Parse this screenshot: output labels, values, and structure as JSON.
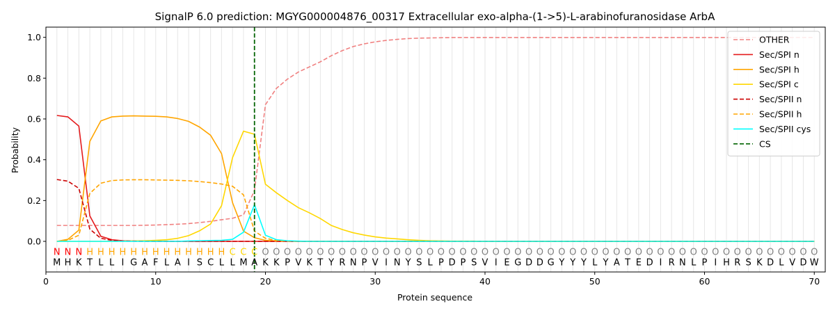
{
  "chart_data": {
    "type": "line",
    "title": "SignalP 6.0 prediction: MGYG000004876_00317 Extracellular exo-alpha-(1->5)-L-arabinofuranosidase ArbA",
    "xlabel": "Protein sequence",
    "ylabel": "Probability",
    "xlim": [
      0,
      71
    ],
    "ylim": [
      -0.15,
      1.05
    ],
    "xticks": [
      0,
      10,
      20,
      30,
      40,
      50,
      60,
      70
    ],
    "yticks": [
      0.0,
      0.2,
      0.4,
      0.6,
      0.8,
      1.0
    ],
    "ytick_labels": [
      "0.0",
      "0.2",
      "0.4",
      "0.6",
      "0.8",
      "1.0"
    ],
    "grid": "vertical lines at every residue",
    "legend_position": "top-right",
    "sequence": [
      "M",
      "H",
      "K",
      "T",
      "L",
      "L",
      "I",
      "G",
      "A",
      "F",
      "L",
      "A",
      "I",
      "S",
      "C",
      "L",
      "L",
      "M",
      "A",
      "K",
      "K",
      "P",
      "V",
      "K",
      "T",
      "Y",
      "R",
      "N",
      "P",
      "V",
      "I",
      "N",
      "Y",
      "S",
      "L",
      "P",
      "D",
      "P",
      "S",
      "V",
      "I",
      "E",
      "G",
      "D",
      "D",
      "G",
      "Y",
      "Y",
      "Y",
      "L",
      "Y",
      "A",
      "T",
      "E",
      "D",
      "I",
      "R",
      "N",
      "L",
      "P",
      "I",
      "H",
      "R",
      "S",
      "K",
      "D",
      "L",
      "V",
      "D",
      "W"
    ],
    "region_labels": [
      "N",
      "N",
      "N",
      "H",
      "H",
      "H",
      "H",
      "H",
      "H",
      "H",
      "H",
      "H",
      "H",
      "H",
      "H",
      "H",
      "C",
      "C",
      "C",
      "O",
      "O",
      "O",
      "O",
      "O",
      "O",
      "O",
      "O",
      "O",
      "O",
      "O",
      "O",
      "O",
      "O",
      "O",
      "O",
      "O",
      "O",
      "O",
      "O",
      "O",
      "O",
      "O",
      "O",
      "O",
      "O",
      "O",
      "O",
      "O",
      "O",
      "O",
      "O",
      "O",
      "O",
      "O",
      "O",
      "O",
      "O",
      "O",
      "O",
      "O",
      "O",
      "O",
      "O",
      "O",
      "O",
      "O",
      "O",
      "O",
      "O",
      "O"
    ],
    "region_colors": {
      "N": "#ff0000",
      "H": "#ffa500",
      "C": "#ffd700",
      "O": "#808080"
    },
    "cleavage_site": 19,
    "series": [
      {
        "name": "OTHER",
        "color": "#f08080",
        "dash": "dashed",
        "values": [
          0.078,
          0.078,
          0.078,
          0.078,
          0.078,
          0.078,
          0.078,
          0.078,
          0.079,
          0.08,
          0.082,
          0.084,
          0.087,
          0.092,
          0.098,
          0.106,
          0.113,
          0.13,
          0.25,
          0.67,
          0.75,
          0.795,
          0.83,
          0.855,
          0.88,
          0.91,
          0.935,
          0.955,
          0.968,
          0.978,
          0.985,
          0.99,
          0.994,
          0.996,
          0.997,
          0.998,
          0.999,
          0.999,
          0.999,
          0.999,
          0.999,
          0.999,
          0.999,
          0.999,
          0.999,
          0.999,
          0.999,
          0.999,
          0.999,
          0.999,
          0.999,
          0.999,
          0.999,
          0.999,
          0.999,
          0.999,
          0.999,
          0.999,
          0.999,
          0.999,
          0.999,
          0.999,
          0.999,
          0.999,
          0.999,
          0.999,
          0.999,
          0.999,
          0.999,
          0.999
        ]
      },
      {
        "name": "Sec/SPI n",
        "color": "#e41a1c",
        "dash": "solid",
        "values": [
          0.617,
          0.61,
          0.565,
          0.125,
          0.025,
          0.008,
          0.003,
          0.001,
          0.001,
          0,
          0,
          0,
          0,
          0,
          0,
          0,
          0,
          0,
          0,
          0,
          0,
          0,
          0,
          0,
          0,
          0,
          0,
          0,
          0,
          0,
          0,
          0,
          0,
          0,
          0,
          0,
          0,
          0,
          0,
          0,
          0,
          0,
          0,
          0,
          0,
          0,
          0,
          0,
          0,
          0,
          0,
          0,
          0,
          0,
          0,
          0,
          0,
          0,
          0,
          0,
          0,
          0,
          0,
          0,
          0,
          0,
          0,
          0,
          0,
          0
        ]
      },
      {
        "name": "Sec/SPI h",
        "color": "#ffa500",
        "dash": "solid",
        "values": [
          0.0,
          0.01,
          0.055,
          0.49,
          0.59,
          0.61,
          0.614,
          0.615,
          0.614,
          0.613,
          0.61,
          0.602,
          0.588,
          0.56,
          0.52,
          0.43,
          0.19,
          0.05,
          0.018,
          0.005,
          0.002,
          0.001,
          0,
          0,
          0,
          0,
          0,
          0,
          0,
          0,
          0,
          0,
          0,
          0,
          0,
          0,
          0,
          0,
          0,
          0,
          0,
          0,
          0,
          0,
          0,
          0,
          0,
          0,
          0,
          0,
          0,
          0,
          0,
          0,
          0,
          0,
          0,
          0,
          0,
          0,
          0,
          0,
          0,
          0,
          0,
          0,
          0,
          0,
          0,
          0
        ]
      },
      {
        "name": "Sec/SPI c",
        "color": "#ffd700",
        "dash": "solid",
        "values": [
          0,
          0,
          0,
          0,
          0,
          0,
          0.001,
          0.002,
          0.003,
          0.005,
          0.008,
          0.015,
          0.028,
          0.052,
          0.085,
          0.175,
          0.41,
          0.54,
          0.525,
          0.28,
          0.238,
          0.2,
          0.165,
          0.14,
          0.112,
          0.078,
          0.058,
          0.042,
          0.031,
          0.022,
          0.016,
          0.012,
          0.008,
          0.005,
          0.003,
          0.002,
          0.001,
          0.001,
          0.001,
          0,
          0,
          0,
          0,
          0,
          0,
          0,
          0,
          0,
          0,
          0,
          0,
          0,
          0,
          0,
          0,
          0,
          0,
          0,
          0,
          0,
          0,
          0,
          0,
          0,
          0,
          0,
          0,
          0,
          0,
          0
        ]
      },
      {
        "name": "Sec/SPII n",
        "color": "#cc0000",
        "dash": "dashed",
        "values": [
          0.303,
          0.295,
          0.26,
          0.06,
          0.015,
          0.005,
          0.002,
          0.001,
          0,
          0,
          0,
          0,
          0,
          0,
          0,
          0,
          0,
          0,
          0,
          0,
          0,
          0,
          0,
          0,
          0,
          0,
          0,
          0,
          0,
          0,
          0,
          0,
          0,
          0,
          0,
          0,
          0,
          0,
          0,
          0,
          0,
          0,
          0,
          0,
          0,
          0,
          0,
          0,
          0,
          0,
          0,
          0,
          0,
          0,
          0,
          0,
          0,
          0,
          0,
          0,
          0,
          0,
          0,
          0,
          0,
          0,
          0,
          0,
          0,
          0
        ]
      },
      {
        "name": "Sec/SPII h",
        "color": "#ffa500",
        "dash": "dashed",
        "values": [
          0.0,
          0.005,
          0.03,
          0.235,
          0.285,
          0.298,
          0.301,
          0.302,
          0.302,
          0.301,
          0.3,
          0.299,
          0.297,
          0.293,
          0.288,
          0.281,
          0.27,
          0.228,
          0.05,
          0.015,
          0.004,
          0.001,
          0,
          0,
          0,
          0,
          0,
          0,
          0,
          0,
          0,
          0,
          0,
          0,
          0,
          0,
          0,
          0,
          0,
          0,
          0,
          0,
          0,
          0,
          0,
          0,
          0,
          0,
          0,
          0,
          0,
          0,
          0,
          0,
          0,
          0,
          0,
          0,
          0,
          0,
          0,
          0,
          0,
          0,
          0,
          0,
          0,
          0,
          0,
          0
        ]
      },
      {
        "name": "Sec/SPII cys",
        "color": "#00ffff",
        "dash": "solid",
        "values": [
          0,
          0,
          0,
          0,
          0,
          0,
          0,
          0,
          0,
          0,
          0,
          0,
          0.002,
          0.003,
          0.004,
          0.005,
          0.01,
          0.045,
          0.18,
          0.03,
          0.008,
          0.003,
          0.001,
          0,
          0,
          0,
          0,
          0,
          0,
          0,
          0,
          0,
          0,
          0,
          0,
          0,
          0,
          0,
          0,
          0,
          0,
          0,
          0,
          0,
          0,
          0,
          0,
          0,
          0,
          0,
          0,
          0,
          0,
          0,
          0,
          0,
          0,
          0,
          0,
          0,
          0,
          0,
          0,
          0,
          0,
          0,
          0,
          0,
          0,
          0
        ]
      }
    ],
    "legend_entries": [
      {
        "name": "OTHER",
        "color": "#f08080",
        "dash": "dashed"
      },
      {
        "name": "Sec/SPI n",
        "color": "#e41a1c",
        "dash": "solid"
      },
      {
        "name": "Sec/SPI h",
        "color": "#ffa500",
        "dash": "solid"
      },
      {
        "name": "Sec/SPI c",
        "color": "#ffd700",
        "dash": "solid"
      },
      {
        "name": "Sec/SPII n",
        "color": "#cc0000",
        "dash": "dashed"
      },
      {
        "name": "Sec/SPII h",
        "color": "#ffa500",
        "dash": "dashed"
      },
      {
        "name": "Sec/SPII cys",
        "color": "#00ffff",
        "dash": "solid"
      },
      {
        "name": "CS",
        "color": "#006400",
        "dash": "dashed"
      }
    ]
  }
}
